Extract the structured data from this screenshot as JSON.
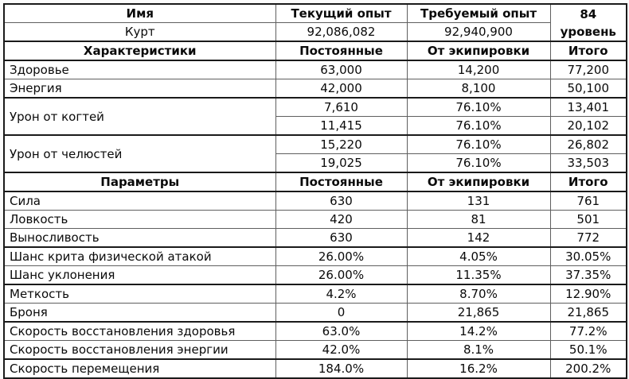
{
  "title_block": {
    "name_header": "Имя",
    "current_xp_header": "Текущий опыт",
    "required_xp_header": "Требуемый опыт",
    "level_value": "84",
    "level_label": "уровень",
    "character_name": "Курт",
    "current_xp": "92,086,082",
    "required_xp": "92,940,900"
  },
  "characteristics": {
    "header": {
      "title": "Характеристики",
      "permanent": "Постоянные",
      "equipment": "От экипировки",
      "total": "Итого"
    },
    "rows": [
      {
        "label": "Здоровье",
        "permanent": "63,000",
        "equipment": "14,200",
        "total": "77,200"
      },
      {
        "label": "Энергия",
        "permanent": "42,000",
        "equipment": "8,100",
        "total": "50,100"
      }
    ],
    "damage_rows": [
      {
        "label": "Урон от когтей",
        "sub": [
          {
            "permanent": "7,610",
            "equipment": "76.10%",
            "total": "13,401"
          },
          {
            "permanent": "11,415",
            "equipment": "76.10%",
            "total": "20,102"
          }
        ]
      },
      {
        "label": "Урон от челюстей",
        "sub": [
          {
            "permanent": "15,220",
            "equipment": "76.10%",
            "total": "26,802"
          },
          {
            "permanent": "19,025",
            "equipment": "76.10%",
            "total": "33,503"
          }
        ]
      }
    ]
  },
  "parameters": {
    "header": {
      "title": "Параметры",
      "permanent": "Постоянные",
      "equipment": "От экипировки",
      "total": "Итого"
    },
    "rows": [
      {
        "label": "Сила",
        "permanent": "630",
        "equipment": "131",
        "total": "761"
      },
      {
        "label": "Ловкость",
        "permanent": "420",
        "equipment": "81",
        "total": "501"
      },
      {
        "label": "Выносливость",
        "permanent": "630",
        "equipment": "142",
        "total": "772"
      },
      {
        "label": "Шанс крита физической атакой",
        "permanent": "26.00%",
        "equipment": "4.05%",
        "total": "30.05%"
      },
      {
        "label": "Шанс уклонения",
        "permanent": "26.00%",
        "equipment": "11.35%",
        "total": "37.35%"
      },
      {
        "label": "Меткость",
        "permanent": "4.2%",
        "equipment": "8.70%",
        "total": "12.90%"
      },
      {
        "label": "Броня",
        "permanent": "0",
        "equipment": "21,865",
        "total": "21,865"
      },
      {
        "label": "Скорость восстановления здоровья",
        "permanent": "63.0%",
        "equipment": "14.2%",
        "total": "77.2%"
      },
      {
        "label": "Скорость восстановления энергии",
        "permanent": "42.0%",
        "equipment": "8.1%",
        "total": "50.1%"
      },
      {
        "label": "Скорость перемещения",
        "permanent": "184.0%",
        "equipment": "16.2%",
        "total": "200.2%"
      }
    ]
  },
  "colors": {
    "outer_border": "#1a1a1a",
    "inner_border": "#5f5f5f",
    "text": "#0a0a0a",
    "background": "#ffffff"
  }
}
